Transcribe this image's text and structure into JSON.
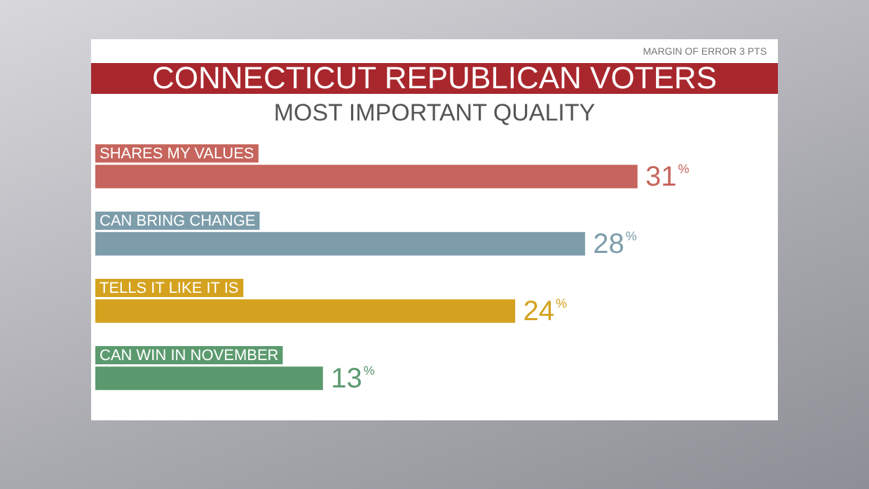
{
  "chart_data": {
    "type": "bar",
    "orientation": "horizontal",
    "title": "CONNECTICUT REPUBLICAN VOTERS",
    "subtitle": "MOST IMPORTANT QUALITY",
    "annotations": [
      "MARGIN OF ERROR 3 PTS"
    ],
    "categories": [
      "SHARES MY VALUES",
      "CAN BRING CHANGE",
      "TELLS IT LIKE IT IS",
      "CAN WIN IN NOVEMBER"
    ],
    "values": [
      31,
      28,
      24,
      13
    ],
    "colors": [
      "#c6655d",
      "#7d9dab",
      "#d4a21e",
      "#5b9a6e"
    ],
    "value_labels": [
      "31%",
      "28%",
      "24%",
      "13%"
    ]
  }
}
